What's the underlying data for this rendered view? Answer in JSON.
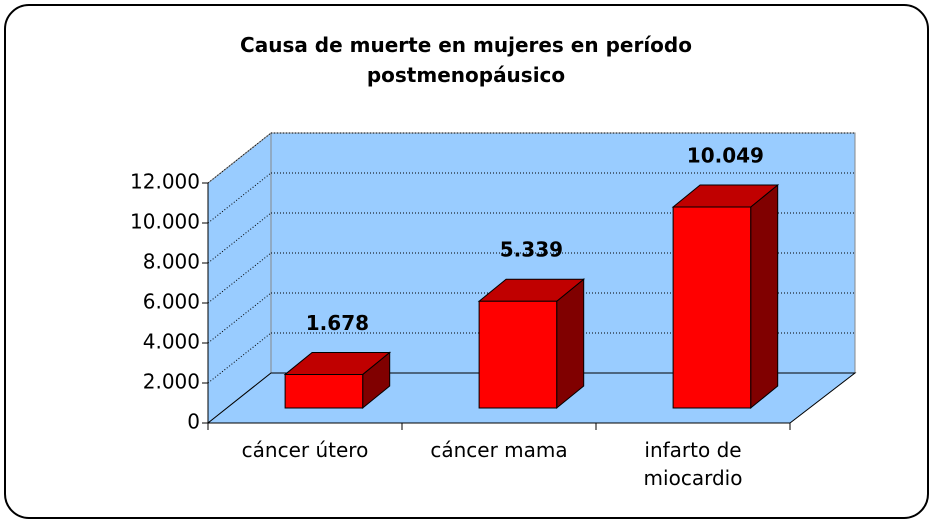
{
  "chart_data": {
    "type": "bar3d",
    "title": "Causa de muerte en mujeres en período postmenopáusico",
    "categories": [
      "cáncer útero",
      "cáncer mama",
      "infarto de miocardio"
    ],
    "values": [
      1678,
      5339,
      10049
    ],
    "value_labels": [
      "1.678",
      "5.339",
      "10.049"
    ],
    "color": "#ff0000",
    "wall_color": "#99ccff",
    "ylim": [
      0,
      12000
    ],
    "yticks": [
      0,
      {
        "value": 2000,
        "label": "2.000"
      },
      {
        "value": 4000,
        "label": "4.000"
      },
      {
        "value": 6000,
        "label": "6.000"
      },
      {
        "value": 8000,
        "label": "8.000"
      },
      {
        "value": 10000,
        "label": "10.000"
      },
      {
        "value": 12000,
        "label": "12.000"
      }
    ],
    "grid": true
  }
}
